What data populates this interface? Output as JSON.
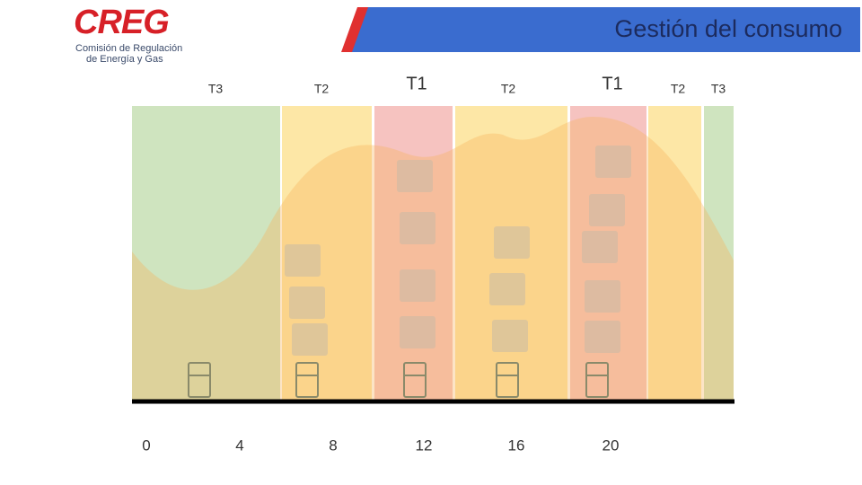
{
  "header": {
    "title": "Gestión del consumo"
  },
  "logo": {
    "name": "CREG",
    "line1": "Comisión de Regulación",
    "line2": "de Energía y Gas"
  },
  "bands": [
    "T3",
    "T2",
    "T1",
    "T2",
    "T1",
    "T2",
    "T3"
  ],
  "hours": [
    "0",
    "4",
    "8",
    "12",
    "16",
    "20"
  ]
}
